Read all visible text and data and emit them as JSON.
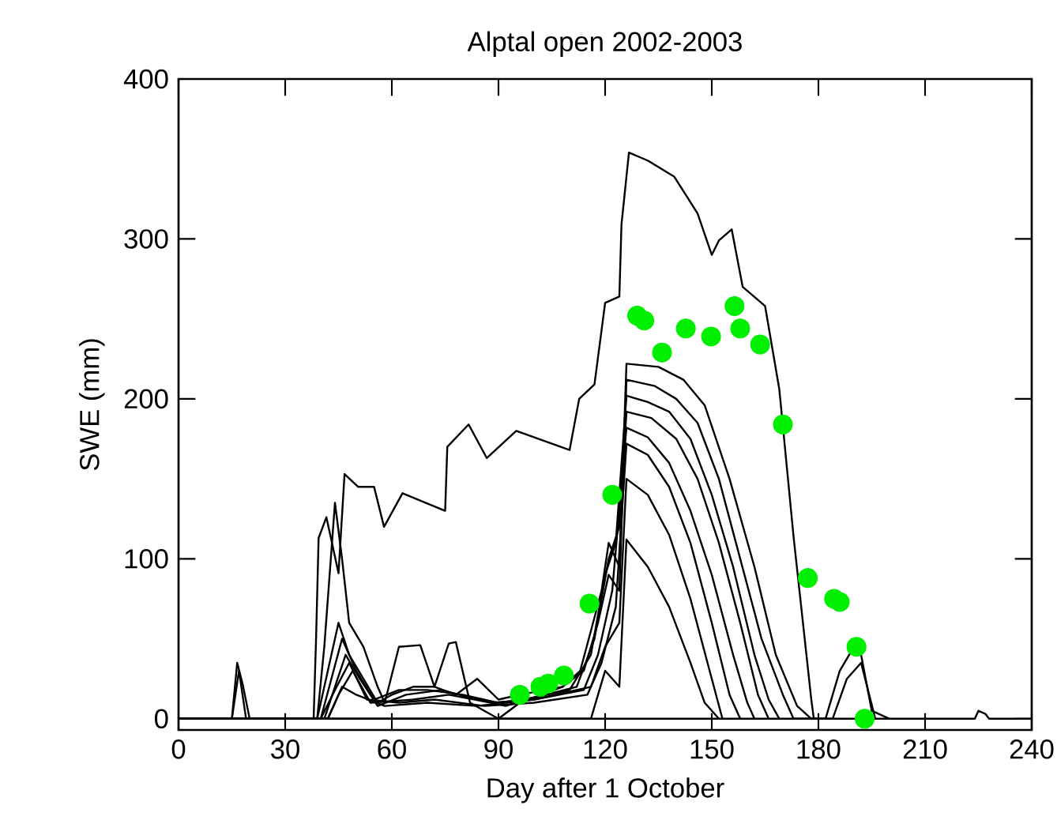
{
  "chart_data": {
    "type": "line",
    "title": "Alptal open 2002-2003",
    "xlabel": "Day after 1 October",
    "ylabel": "SWE (mm)",
    "xlim": [
      0,
      240
    ],
    "ylim": [
      -7,
      400
    ],
    "xticks": [
      0,
      30,
      60,
      90,
      120,
      150,
      180,
      210,
      240
    ],
    "yticks": [
      0,
      100,
      200,
      300,
      400
    ],
    "line_style": "solid",
    "series": [
      {
        "color": "#000000",
        "x": [
          0,
          38,
          38.7,
          39.4,
          41.6,
          45,
          46.7,
          50.5,
          55,
          57.8,
          63,
          75,
          75.6,
          81.6,
          86.7,
          95,
          110,
          112.7,
          117,
          120,
          124,
          124.6,
          126.7,
          132,
          139.4,
          146,
          150,
          152,
          155.6,
          158.7,
          165,
          169,
          173,
          178,
          178.7
        ],
        "values": [
          0,
          0,
          51,
          113,
          126,
          91,
          153,
          145,
          145,
          120,
          141,
          130,
          170,
          184,
          163,
          180,
          168,
          200,
          209,
          260,
          264,
          309,
          354,
          349,
          339,
          316,
          290,
          299,
          306,
          270,
          258,
          206,
          114,
          12,
          0
        ]
      },
      {
        "color": "#000000",
        "x": [
          0,
          15,
          16.5,
          18,
          20,
          39,
          41,
          44,
          46,
          48,
          52,
          56,
          58,
          62,
          68,
          72,
          76,
          78,
          82,
          86,
          90,
          96,
          108,
          113,
          116,
          119,
          121,
          124,
          126,
          135,
          142,
          148,
          155,
          162,
          168,
          174,
          178,
          182,
          186,
          190,
          192,
          195,
          200
        ],
        "values": [
          0,
          0,
          35,
          22,
          0,
          0,
          45,
          135,
          100,
          60,
          45,
          20,
          10,
          45,
          46,
          20,
          47,
          48,
          10,
          5,
          0,
          10,
          20,
          30,
          55,
          80,
          110,
          95,
          222,
          220,
          212,
          196,
          150,
          95,
          40,
          8,
          0,
          0,
          30,
          45,
          40,
          5,
          0
        ]
      },
      {
        "color": "#000000",
        "x": [
          0,
          15,
          17,
          19,
          39,
          42,
          45,
          48,
          52,
          56,
          60,
          66,
          72,
          78,
          84,
          90,
          96,
          108,
          114,
          118,
          121,
          124,
          126,
          134,
          140,
          146,
          152,
          158,
          164,
          170,
          173,
          184,
          188,
          192,
          196
        ],
        "values": [
          0,
          0,
          30,
          0,
          0,
          30,
          60,
          40,
          25,
          10,
          15,
          20,
          20,
          15,
          25,
          12,
          15,
          20,
          30,
          60,
          90,
          80,
          212,
          208,
          200,
          185,
          150,
          100,
          50,
          15,
          0,
          0,
          25,
          35,
          0
        ]
      },
      {
        "color": "#000000",
        "x": [
          0,
          40,
          43,
          46,
          50,
          55,
          62,
          70,
          80,
          90,
          97,
          110,
          116,
          120,
          123,
          126,
          132,
          138,
          144,
          150,
          156,
          162,
          166,
          169
        ],
        "values": [
          0,
          0,
          25,
          50,
          30,
          12,
          18,
          18,
          15,
          10,
          12,
          18,
          40,
          90,
          110,
          202,
          198,
          192,
          175,
          140,
          95,
          40,
          12,
          0
        ]
      },
      {
        "color": "#000000",
        "x": [
          0,
          41,
          44,
          47,
          51,
          56,
          64,
          74,
          84,
          92,
          98,
          112,
          117,
          121,
          124,
          126,
          133,
          140,
          146,
          152,
          158,
          163,
          166
        ],
        "values": [
          0,
          0,
          20,
          40,
          25,
          8,
          15,
          18,
          12,
          8,
          12,
          20,
          50,
          100,
          120,
          192,
          188,
          175,
          150,
          110,
          60,
          15,
          0
        ]
      },
      {
        "color": "#000000",
        "x": [
          0,
          42,
          45,
          49,
          54,
          66,
          76,
          88,
          100,
          114,
          118,
          122,
          126,
          132,
          138,
          144,
          150,
          156,
          160,
          162
        ],
        "values": [
          0,
          0,
          15,
          30,
          10,
          12,
          15,
          10,
          12,
          18,
          40,
          80,
          182,
          176,
          160,
          130,
          90,
          40,
          10,
          0
        ]
      },
      {
        "color": "#000000",
        "x": [
          0,
          40,
          44,
          48,
          53,
          62,
          72,
          86,
          100,
          115,
          119,
          123,
          126,
          132,
          138,
          144,
          150,
          155,
          158
        ],
        "values": [
          0,
          0,
          18,
          35,
          12,
          10,
          12,
          8,
          10,
          15,
          35,
          70,
          172,
          165,
          145,
          110,
          60,
          15,
          0
        ]
      },
      {
        "color": "#000000",
        "x": [
          0,
          42,
          46,
          50,
          58,
          70,
          84,
          100,
          116,
          120,
          124,
          126,
          132,
          138,
          144,
          150,
          153
        ],
        "values": [
          0,
          0,
          20,
          15,
          8,
          10,
          8,
          12,
          20,
          45,
          60,
          150,
          140,
          115,
          75,
          25,
          0
        ]
      },
      {
        "color": "#000000",
        "x": [
          0,
          116,
          120,
          124,
          126,
          132,
          138,
          144,
          148,
          152
        ],
        "values": [
          0,
          0,
          30,
          20,
          112,
          95,
          70,
          35,
          10,
          0
        ]
      },
      {
        "color": "#000000",
        "x": [
          0,
          224,
          225,
          227,
          228,
          240
        ],
        "values": [
          0,
          0,
          5,
          3,
          0,
          0
        ]
      },
      {
        "type": "scatter",
        "marker": "circle",
        "color": "#00ee00",
        "x": [
          96,
          101.8,
          104,
          108.4,
          115.6,
          122,
          129,
          131,
          136,
          142.7,
          149.8,
          156.4,
          158,
          163.6,
          170,
          177,
          184.4,
          186,
          190.7,
          193
        ],
        "values": [
          15,
          20,
          22,
          27,
          72,
          140,
          252,
          249,
          229,
          244,
          239,
          258,
          244,
          234,
          184,
          88,
          75,
          73,
          45,
          0
        ]
      }
    ]
  }
}
